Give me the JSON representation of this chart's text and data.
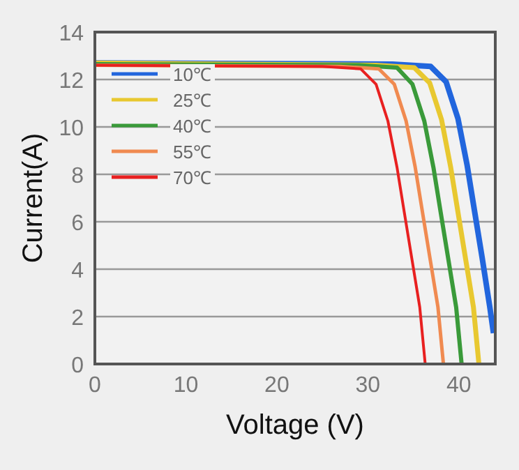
{
  "chart_data": {
    "type": "line",
    "xlabel": "Voltage (V)",
    "ylabel": "Current(A)",
    "xlim": [
      0,
      44
    ],
    "ylim": [
      0,
      14
    ],
    "xticks": [
      0,
      10,
      20,
      30,
      40
    ],
    "yticks": [
      0,
      2,
      4,
      6,
      8,
      10,
      12,
      14
    ],
    "grid": "y",
    "legend": "top left",
    "marker": "none",
    "line_style": "solid",
    "series": [
      {
        "name": "10℃",
        "color": "#2266dd",
        "x": [
          0,
          32.7,
          36.9,
          38.6,
          39.9,
          40.9,
          41.7,
          42.55,
          43.4,
          43.8
        ],
        "values": [
          12.7,
          12.65,
          12.55,
          11.9,
          10.35,
          8.4,
          6.5,
          4.5,
          2.4,
          1.3
        ]
      },
      {
        "name": "25℃",
        "color": "#e8c830",
        "x": [
          0,
          30.9,
          35.1,
          36.8,
          38.1,
          39.1,
          39.9,
          40.75,
          41.6,
          42.2
        ],
        "values": [
          12.7,
          12.6,
          12.5,
          11.85,
          10.3,
          8.3,
          6.4,
          4.4,
          2.4,
          0
        ]
      },
      {
        "name": "40℃",
        "color": "#3a9a3a",
        "x": [
          0,
          29,
          33.2,
          34.9,
          36.2,
          37.2,
          38.0,
          38.85,
          39.7,
          40.3
        ],
        "values": [
          12.65,
          12.6,
          12.5,
          11.8,
          10.25,
          8.3,
          6.4,
          4.4,
          2.4,
          0
        ]
      },
      {
        "name": "55℃",
        "color": "#f08a50",
        "x": [
          0,
          27,
          31.2,
          32.9,
          34.2,
          35.2,
          36.0,
          36.85,
          37.7,
          38.3
        ],
        "values": [
          12.6,
          12.55,
          12.45,
          11.8,
          10.25,
          8.3,
          6.4,
          4.4,
          2.4,
          0
        ]
      },
      {
        "name": "70℃",
        "color": "#e82020",
        "x": [
          0,
          25,
          29.2,
          30.9,
          32.2,
          33.2,
          34.0,
          34.85,
          35.7,
          36.3
        ],
        "values": [
          12.6,
          12.55,
          12.45,
          11.8,
          10.25,
          8.3,
          6.4,
          4.4,
          2.4,
          0
        ]
      }
    ]
  }
}
